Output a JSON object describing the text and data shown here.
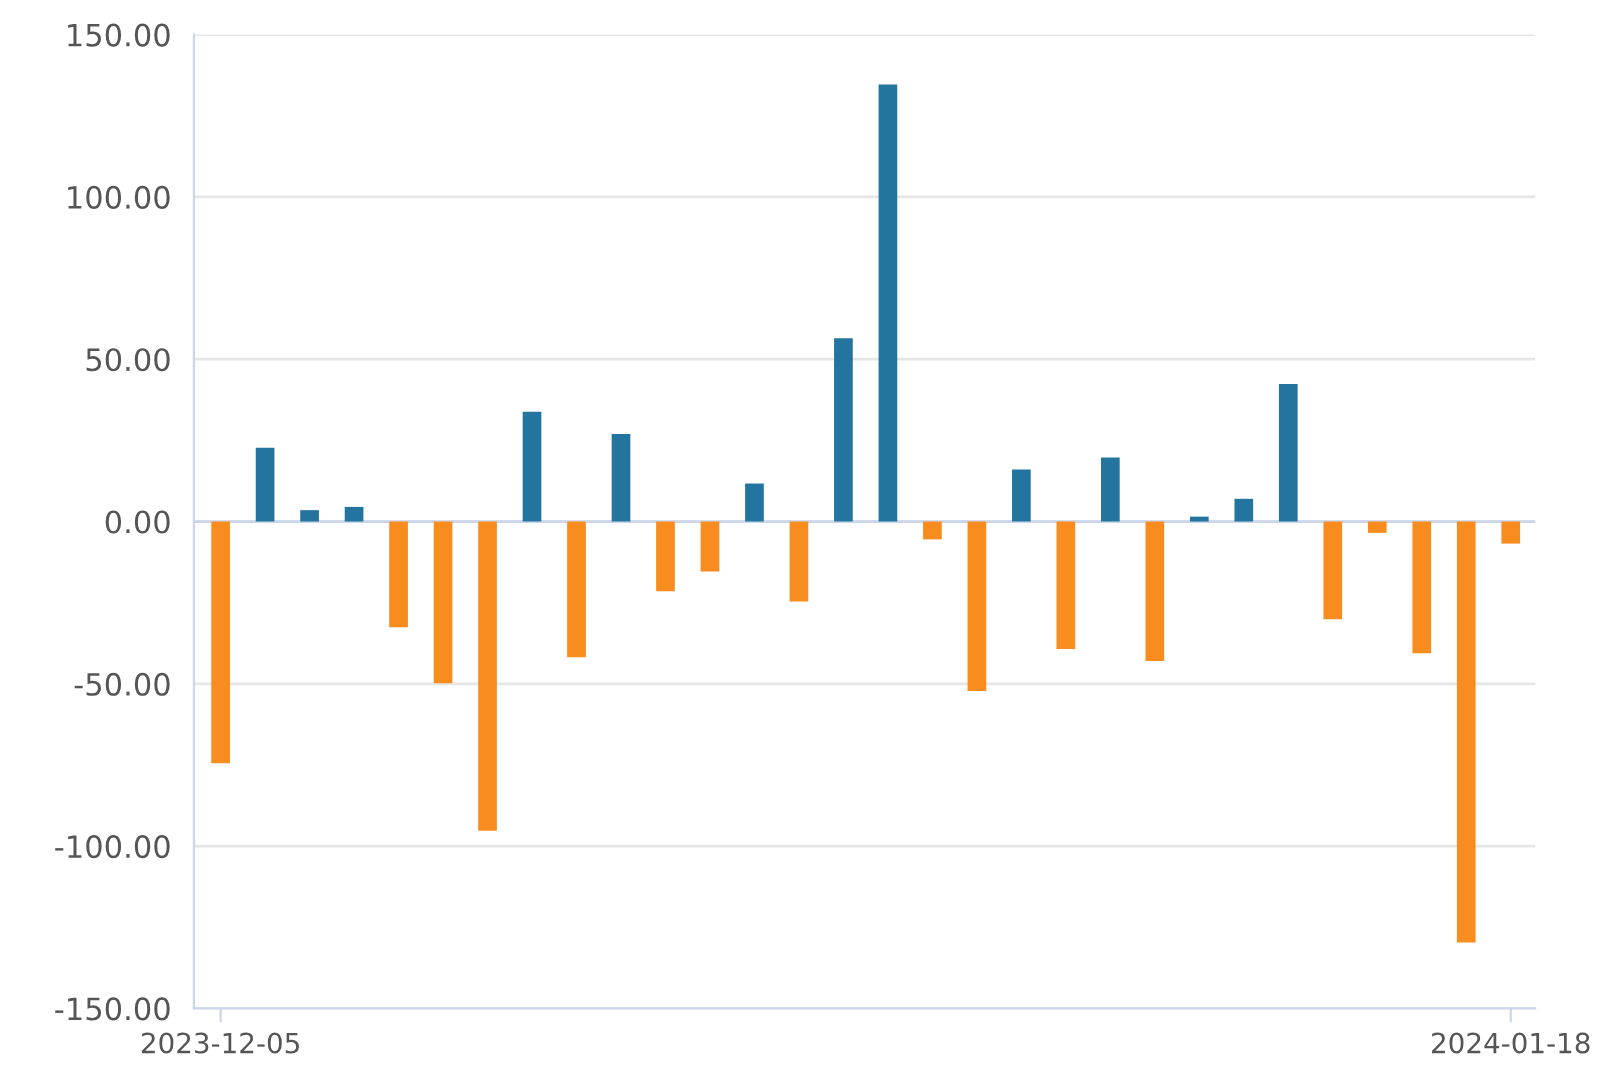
{
  "chart_data": {
    "type": "bar",
    "categories": [
      "2023-12-05",
      null,
      null,
      null,
      null,
      null,
      null,
      null,
      null,
      null,
      null,
      null,
      null,
      null,
      null,
      null,
      null,
      null,
      null,
      null,
      null,
      null,
      null,
      null,
      null,
      null,
      null,
      null,
      null,
      "2024-01-18"
    ],
    "values": [
      -74.5,
      22.7,
      3.5,
      4.5,
      -32.6,
      -49.8,
      -95.3,
      33.8,
      -41.8,
      27,
      -21.5,
      -15.4,
      11.7,
      -24.6,
      56.5,
      134.6,
      -5.5,
      -52.2,
      16,
      -39.3,
      19.7,
      -43,
      1.5,
      7,
      42.4,
      -30.1,
      -3.5,
      -40.6,
      -129.7,
      -6.8
    ],
    "colors": [
      "#f98c1f",
      "#23749f",
      "#23749f",
      "#23749f",
      "#f98c1f",
      "#f98c1f",
      "#f98c1f",
      "#23749f",
      "#f98c1f",
      "#23749f",
      "#f98c1f",
      "#f98c1f",
      "#23749f",
      "#f98c1f",
      "#23749f",
      "#23749f",
      "#f98c1f",
      "#f98c1f",
      "#23749f",
      "#f98c1f",
      "#23749f",
      "#f98c1f",
      "#23749f",
      "#23749f",
      "#23749f",
      "#f98c1f",
      "#f98c1f",
      "#f98c1f",
      "#f98c1f",
      "#f98c1f"
    ],
    "ylim": [
      -150,
      150
    ],
    "yticks": [
      {
        "value": -150,
        "label": "-150.00"
      },
      {
        "value": -100,
        "label": "-100.00"
      },
      {
        "value": -50,
        "label": "-50.00"
      },
      {
        "value": 0,
        "label": "0.00"
      },
      {
        "value": 50,
        "label": "50.00"
      },
      {
        "value": 100,
        "label": "100.00"
      },
      {
        "value": 150,
        "label": "150.00"
      }
    ],
    "grid": "y"
  }
}
